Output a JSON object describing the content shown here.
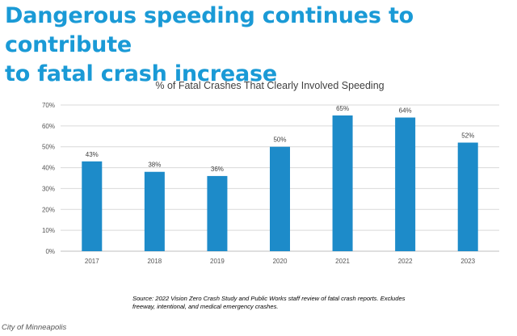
{
  "headline": {
    "line1": "Dangerous speeding continues to contribute",
    "line2": "to fatal crash increase"
  },
  "source_note": {
    "line1": "Source: 2022 Vision Zero Crash Study and Public Works staff review of fatal crash reports. Excludes",
    "line2": "freeway, intentional, and medical emergency crashes."
  },
  "credit": "City of Minneapolis",
  "colors": {
    "headline": "#1a9ad6",
    "bar": "#1d8bc9",
    "gridline": "#d9d9d9",
    "axis_text": "#555555"
  },
  "chart_data": {
    "type": "bar",
    "title": "% of Fatal Crashes That Clearly Involved Speeding",
    "xlabel": "",
    "ylabel": "",
    "categories": [
      "2017",
      "2018",
      "2019",
      "2020",
      "2021",
      "2022",
      "2023"
    ],
    "values": [
      43,
      38,
      36,
      50,
      65,
      64,
      52
    ],
    "data_labels": [
      "43%",
      "38%",
      "36%",
      "50%",
      "65%",
      "64%",
      "52%"
    ],
    "y_ticks": [
      0,
      10,
      20,
      30,
      40,
      50,
      60,
      70
    ],
    "y_tick_labels": [
      "0%",
      "10%",
      "20%",
      "30%",
      "40%",
      "50%",
      "60%",
      "70%"
    ],
    "ylim": [
      0,
      70
    ],
    "grid": true,
    "legend": "none"
  }
}
